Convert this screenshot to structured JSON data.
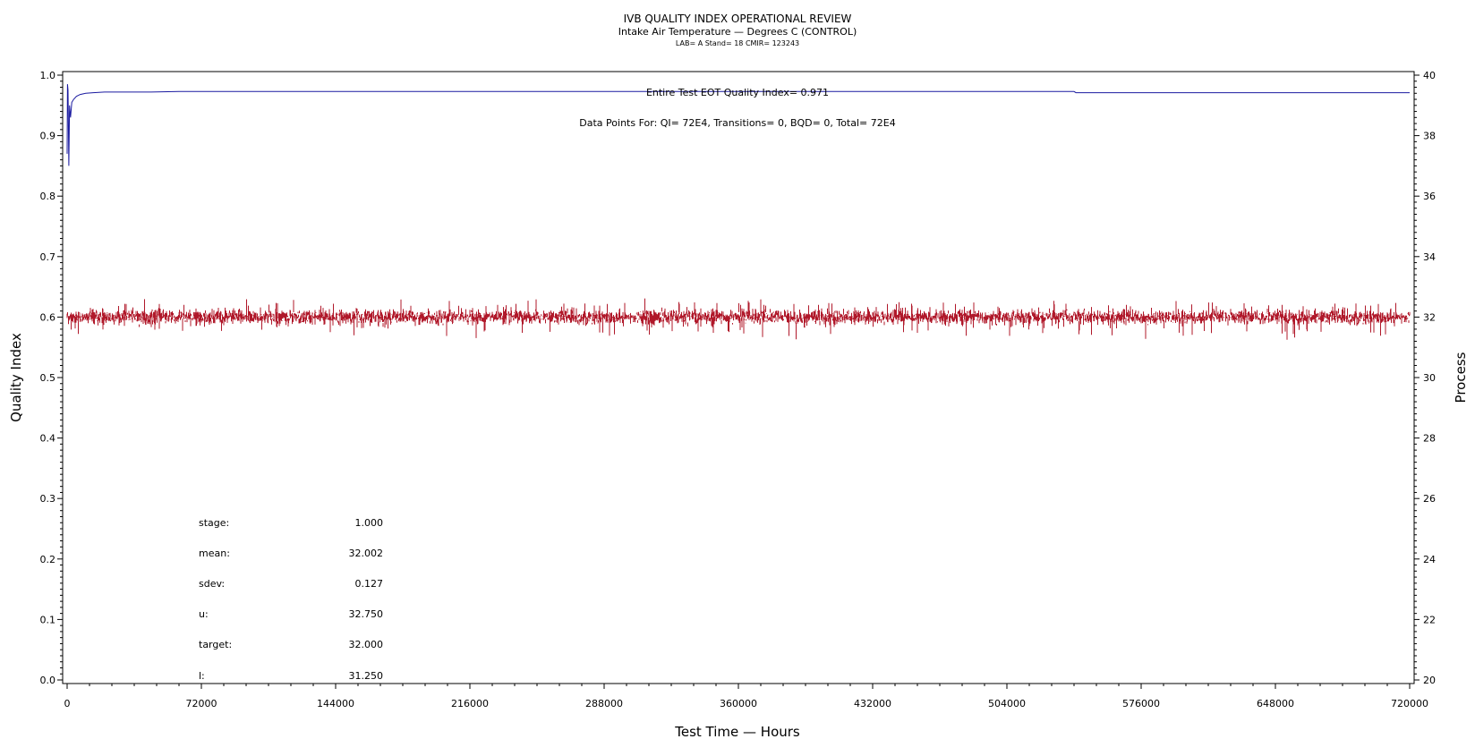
{
  "chart_data": {
    "type": "line",
    "title": "IVB QUALITY INDEX OPERATIONAL REVIEW",
    "subtitle": "Intake Air Temperature — Degrees C (CONTROL)",
    "subsubtitle": "LAB= A Stand= 18 CMIR= 123243",
    "xlabel": "Test Time — Hours",
    "ylabel": "Quality Index",
    "y2label": "Process",
    "xlim": [
      0,
      720000
    ],
    "ylim": [
      0.0,
      1.0
    ],
    "y2lim": [
      20,
      40
    ],
    "xticks": [
      "0",
      "72000",
      "144000",
      "216000",
      "288000",
      "360000",
      "432000",
      "504000",
      "576000",
      "648000",
      "720000"
    ],
    "yticks": [
      "0.0",
      "0.1",
      "0.2",
      "0.3",
      "0.4",
      "0.5",
      "0.6",
      "0.7",
      "0.8",
      "0.9",
      "1.0"
    ],
    "y2ticks": [
      "20",
      "22",
      "24",
      "26",
      "28",
      "30",
      "32",
      "34",
      "36",
      "38",
      "40"
    ],
    "annotations": {
      "eot": "Entire Test EOT Quality Index=   0.971",
      "points": "Data Points For: QI=  72E4, Transitions=     0, BQD=     0, Total=  72E4"
    },
    "stats": [
      {
        "label": "stage:",
        "value": "1.000"
      },
      {
        "label": "mean:",
        "value": "32.002"
      },
      {
        "label": "sdev:",
        "value": "0.127"
      },
      {
        "label": "u:",
        "value": "32.750"
      },
      {
        "label": "target:",
        "value": "32.000"
      },
      {
        "label": "l:",
        "value": "31.250"
      }
    ],
    "series": [
      {
        "axis": "left",
        "color": "#1a1aa0",
        "x": [
          0,
          200,
          500,
          900,
          1300,
          1800,
          2500,
          3500,
          5000,
          7000,
          10000,
          14000,
          20000,
          30000,
          45000,
          60000,
          100000,
          200000,
          300000,
          400000,
          500000,
          540000,
          541000,
          600000,
          720000
        ],
        "y": [
          0.87,
          0.985,
          0.975,
          0.85,
          0.95,
          0.93,
          0.955,
          0.96,
          0.965,
          0.968,
          0.97,
          0.971,
          0.972,
          0.972,
          0.972,
          0.973,
          0.973,
          0.973,
          0.973,
          0.973,
          0.973,
          0.973,
          0.971,
          0.971,
          0.971
        ]
      },
      {
        "axis": "right",
        "color": "#b0182a",
        "mean": 32.002,
        "sdev": 0.127,
        "x_start": 0,
        "x_end": 720000,
        "sample_points": 720000
      }
    ],
    "grid": false,
    "legend": "none"
  }
}
